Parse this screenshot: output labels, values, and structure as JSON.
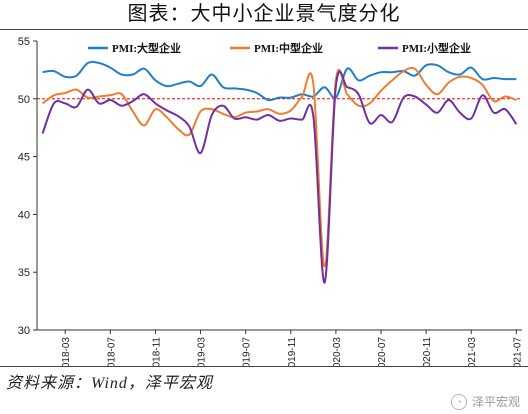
{
  "title": "图表：大中小企业景气度分化",
  "source": "资料来源：Wind，泽平宏观",
  "watermark": "泽平宏观",
  "chart_data": {
    "type": "line",
    "title": "图表：大中小企业景气度分化",
    "xlabel": "",
    "ylabel": "",
    "ylim": [
      30,
      55
    ],
    "yticks": [
      30,
      35,
      40,
      45,
      50,
      55
    ],
    "grid": false,
    "legend": "top",
    "reference_line": {
      "y": 50,
      "color": "#ff0000",
      "style": "dashed"
    },
    "x": [
      "2018-01",
      "2018-02",
      "2018-03",
      "2018-04",
      "2018-05",
      "2018-06",
      "2018-07",
      "2018-08",
      "2018-09",
      "2018-10",
      "2018-11",
      "2018-12",
      "2019-01",
      "2019-02",
      "2019-03",
      "2019-04",
      "2019-05",
      "2019-06",
      "2019-07",
      "2019-08",
      "2019-09",
      "2019-10",
      "2019-11",
      "2019-12",
      "2020-01",
      "2020-02",
      "2020-03",
      "2020-04",
      "2020-05",
      "2020-06",
      "2020-07",
      "2020-08",
      "2020-09",
      "2020-10",
      "2020-11",
      "2020-12",
      "2021-01",
      "2021-02",
      "2021-03",
      "2021-04",
      "2021-05",
      "2021-06",
      "2021-07"
    ],
    "x_tick_labels": [
      "2018-03",
      "2018-07",
      "2018-11",
      "2019-03",
      "2019-07",
      "2019-11",
      "2020-03",
      "2020-07",
      "2020-11",
      "2021-03",
      "2021-07"
    ],
    "series": [
      {
        "name": "PMI:大型企业",
        "color": "#1f7fc9",
        "values": [
          52.3,
          52.4,
          51.9,
          52.0,
          53.1,
          53.1,
          52.7,
          52.1,
          52.1,
          52.6,
          51.6,
          51.1,
          51.3,
          51.5,
          51.1,
          52.1,
          51.0,
          50.9,
          50.8,
          50.5,
          49.9,
          50.1,
          50.1,
          50.4,
          50.2,
          51.0,
          50.1,
          52.6,
          51.6,
          52.0,
          52.3,
          52.3,
          52.4,
          52.0,
          52.9,
          52.9,
          52.3,
          52.1,
          52.7,
          51.7,
          51.8,
          51.7,
          51.7
        ]
      },
      {
        "name": "PMI:中型企业",
        "color": "#ed7d31",
        "values": [
          49.6,
          50.3,
          50.5,
          50.8,
          50.1,
          50.2,
          50.3,
          50.4,
          48.9,
          47.7,
          49.1,
          48.4,
          47.4,
          46.9,
          48.9,
          49.1,
          48.7,
          48.4,
          48.8,
          48.9,
          49.1,
          48.7,
          49.0,
          50.2,
          51.3,
          35.5,
          51.6,
          50.4,
          49.4,
          49.6,
          50.7,
          51.6,
          52.4,
          52.6,
          51.2,
          50.4,
          51.4,
          51.9,
          51.8,
          51.2,
          49.8,
          50.2,
          49.9
        ]
      },
      {
        "name": "PMI:小型企业",
        "color": "#7030a0",
        "values": [
          47.0,
          49.6,
          49.6,
          49.3,
          50.8,
          49.6,
          49.9,
          49.4,
          49.8,
          50.4,
          49.6,
          49.0,
          48.5,
          47.6,
          45.3,
          48.6,
          49.4,
          48.3,
          48.4,
          48.2,
          48.6,
          48.1,
          48.3,
          48.2,
          48.5,
          34.1,
          51.1,
          51.0,
          50.4,
          47.9,
          48.6,
          48.0,
          50.1,
          50.2,
          49.5,
          48.8,
          49.9,
          48.8,
          48.3,
          50.3,
          48.8,
          49.1,
          47.8
        ]
      }
    ]
  }
}
